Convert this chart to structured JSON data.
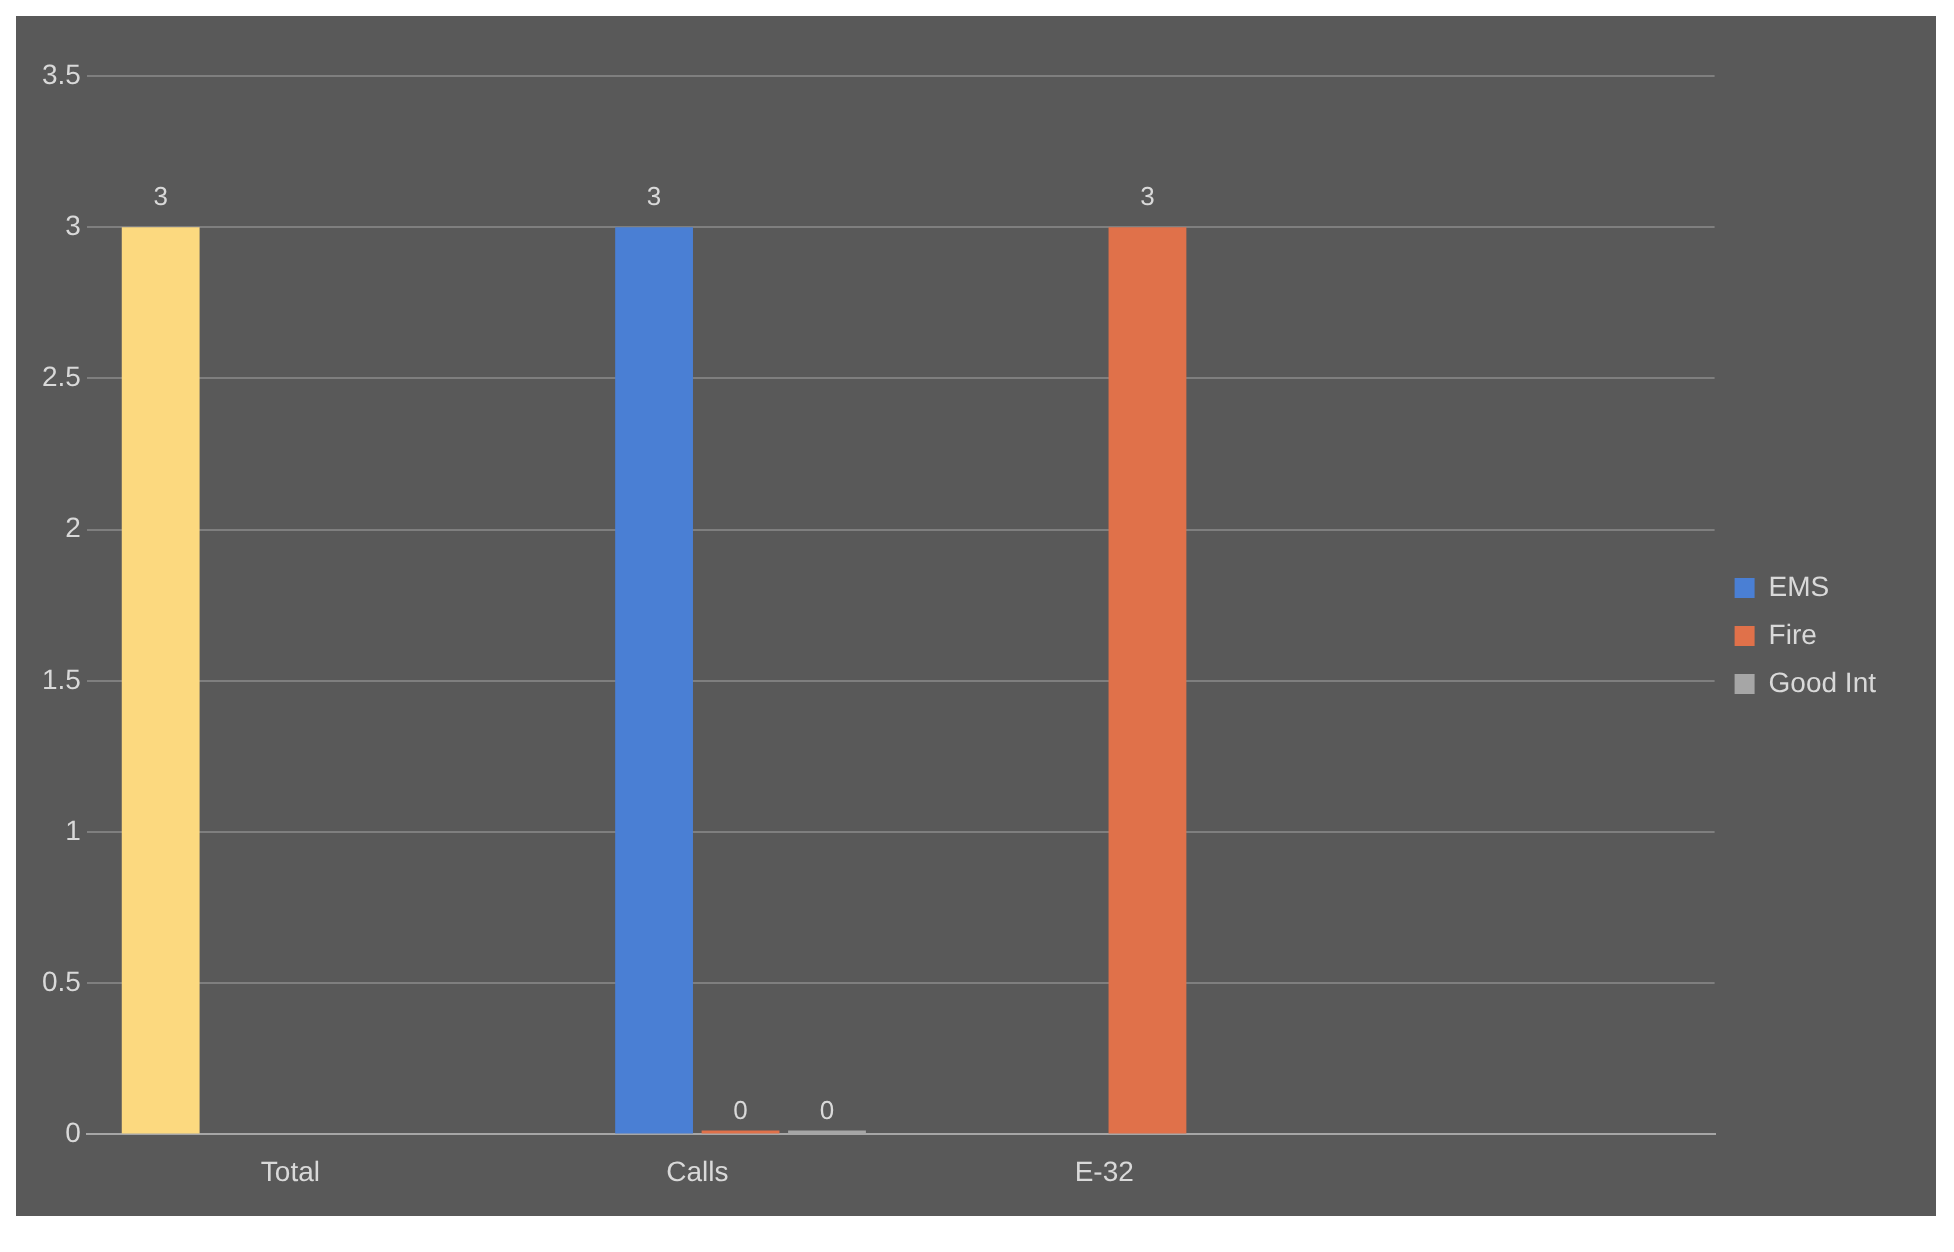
{
  "chart_data": {
    "type": "bar",
    "categories": [
      "Total",
      "Calls",
      "E-32",
      null
    ],
    "series": [
      {
        "color": "#fcd97f",
        "values": [
          3,
          null,
          null,
          null
        ]
      },
      {
        "name": "EMS",
        "color": "#4a7fd4",
        "values": [
          null,
          3,
          null,
          null
        ]
      },
      {
        "name": "Fire",
        "color": "#e0714a",
        "values": [
          null,
          0,
          3,
          null
        ]
      },
      {
        "name": "Good Int",
        "color": "#a6a6a6",
        "values": [
          null,
          0,
          null,
          null
        ]
      }
    ],
    "ylim": [
      0,
      3.5
    ],
    "yticks": [
      0,
      0.5,
      1,
      1.5,
      2,
      2.5,
      3,
      3.5
    ],
    "grid": "y",
    "legend": "right",
    "data_labels": true
  }
}
